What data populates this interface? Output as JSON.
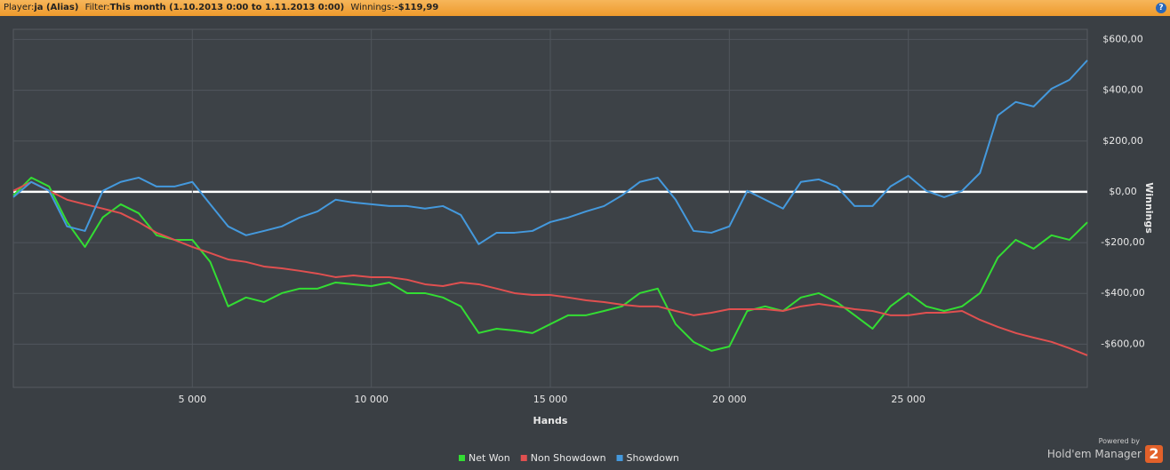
{
  "header": {
    "player_label": "Player:",
    "player": "ja (Alias)",
    "filter_label": "Filter:",
    "filter": "This month (1.10.2013 0:00 to 1.11.2013 0:00)",
    "winnings_label": "Winnings:",
    "winnings": "-$119,99",
    "help": "?"
  },
  "branding": {
    "powered": "Powered by",
    "product": "Hold'em Manager",
    "version": "2"
  },
  "chart_data": {
    "type": "line",
    "x_label": "Hands",
    "y_label": "Winnings",
    "grid": true,
    "legend": "bottom",
    "xlim": [
      0,
      30000
    ],
    "ylim": [
      -770,
      640
    ],
    "xticks": [
      {
        "value": 5000,
        "label": "5 000"
      },
      {
        "value": 10000,
        "label": "10 000"
      },
      {
        "value": 15000,
        "label": "15 000"
      },
      {
        "value": 20000,
        "label": "20 000"
      },
      {
        "value": 25000,
        "label": "25 000"
      }
    ],
    "yticks": [
      {
        "value": 600,
        "label": "$600,00"
      },
      {
        "value": 400,
        "label": "$400,00"
      },
      {
        "value": 200,
        "label": "$200,00"
      },
      {
        "value": 0,
        "label": "$0,00"
      },
      {
        "value": -200,
        "label": "-$200,00"
      },
      {
        "value": -400,
        "label": "-$400,00"
      },
      {
        "value": -600,
        "label": "-$600,00"
      }
    ],
    "x": [
      0,
      500,
      1000,
      1500,
      2000,
      2500,
      3000,
      3500,
      4000,
      4500,
      5000,
      5500,
      6000,
      6500,
      7000,
      7500,
      8000,
      8500,
      9000,
      9500,
      10000,
      10500,
      11000,
      11500,
      12000,
      12500,
      13000,
      13500,
      14000,
      14500,
      15000,
      15500,
      16000,
      16500,
      17000,
      17500,
      18000,
      18500,
      19000,
      19500,
      20000,
      20500,
      21000,
      21500,
      22000,
      22500,
      23000,
      23500,
      24000,
      24500,
      25000,
      25500,
      26000,
      26500,
      27000,
      27500,
      28000,
      28500,
      29000,
      29500,
      30000
    ],
    "series": [
      {
        "name": "Net Won",
        "color": "#33dd33",
        "values": [
          -14,
          56,
          21,
          -119,
          -217,
          -100,
          -49,
          -84,
          -171,
          -189,
          -189,
          -276,
          -451,
          -416,
          -434,
          -399,
          -381,
          -381,
          -357,
          -364,
          -371,
          -357,
          -399,
          -399,
          -416,
          -451,
          -556,
          -539,
          -546,
          -556,
          -521,
          -486,
          -486,
          -469,
          -451,
          -399,
          -381,
          -521,
          -591,
          -626,
          -609,
          -469,
          -451,
          -469,
          -416,
          -399,
          -434,
          -486,
          -539,
          -451,
          -399,
          -451,
          -469,
          -451,
          -399,
          -259,
          -189,
          -224,
          -171,
          -189,
          -119.99
        ]
      },
      {
        "name": "Non Showdown",
        "color": "#e05050",
        "values": [
          4,
          39,
          4,
          -31,
          -49,
          -66,
          -84,
          -119,
          -161,
          -189,
          -217,
          -241,
          -266,
          -276,
          -294,
          -301,
          -311,
          -322,
          -336,
          -329,
          -336,
          -336,
          -346,
          -364,
          -371,
          -357,
          -364,
          -381,
          -399,
          -406,
          -406,
          -416,
          -427,
          -434,
          -444,
          -451,
          -451,
          -469,
          -486,
          -476,
          -462,
          -462,
          -462,
          -469,
          -451,
          -441,
          -451,
          -462,
          -469,
          -486,
          -486,
          -476,
          -476,
          -469,
          -504,
          -532,
          -556,
          -574,
          -591,
          -616,
          -644
        ]
      },
      {
        "name": "Showdown",
        "color": "#4499dd",
        "values": [
          -21,
          39,
          4,
          -136,
          -154,
          4,
          39,
          56,
          21,
          21,
          39,
          -49,
          -136,
          -171,
          -154,
          -136,
          -101,
          -77,
          -31,
          -42,
          -49,
          -56,
          -56,
          -66,
          -56,
          -91,
          -206,
          -161,
          -161,
          -154,
          -119,
          -101,
          -77,
          -56,
          -14,
          39,
          56,
          -31,
          -154,
          -161,
          -136,
          4,
          -31,
          -66,
          39,
          49,
          21,
          -56,
          -56,
          21,
          63,
          4,
          -21,
          4,
          74,
          301,
          354,
          336,
          406,
          441,
          518
        ]
      }
    ]
  }
}
